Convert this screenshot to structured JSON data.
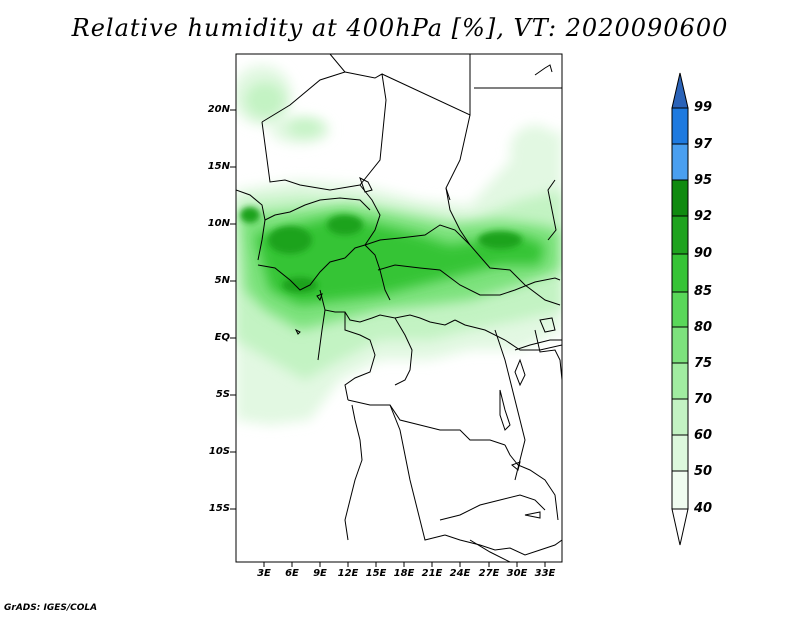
{
  "title": "Relative humidity at 400hPa [%], VT: 2020090600",
  "credit": "GrADS: IGES/COLA",
  "lat_labels": [
    "20N",
    "15N",
    "10N",
    "5N",
    "EQ",
    "5S",
    "10S",
    "15S"
  ],
  "lon_labels": [
    "3E",
    "6E",
    "9E",
    "12E",
    "15E",
    "18E",
    "21E",
    "24E",
    "27E",
    "30E",
    "33E"
  ],
  "colorbar": {
    "levels": [
      "99",
      "97",
      "95",
      "92",
      "90",
      "85",
      "80",
      "75",
      "70",
      "60",
      "50",
      "40"
    ],
    "colors": [
      "#3a6ed6",
      "#1e7ae0",
      "#4a9ff0",
      "#0f8a0f",
      "#1fa31f",
      "#36c436",
      "#59d759",
      "#7de27d",
      "#a1eca1",
      "#c3f3c3",
      "#dcf8dc",
      "#f0fcf0"
    ],
    "top_arrow_color": "#2b63b8",
    "bottom_arrow_color": "#ffffff"
  }
}
